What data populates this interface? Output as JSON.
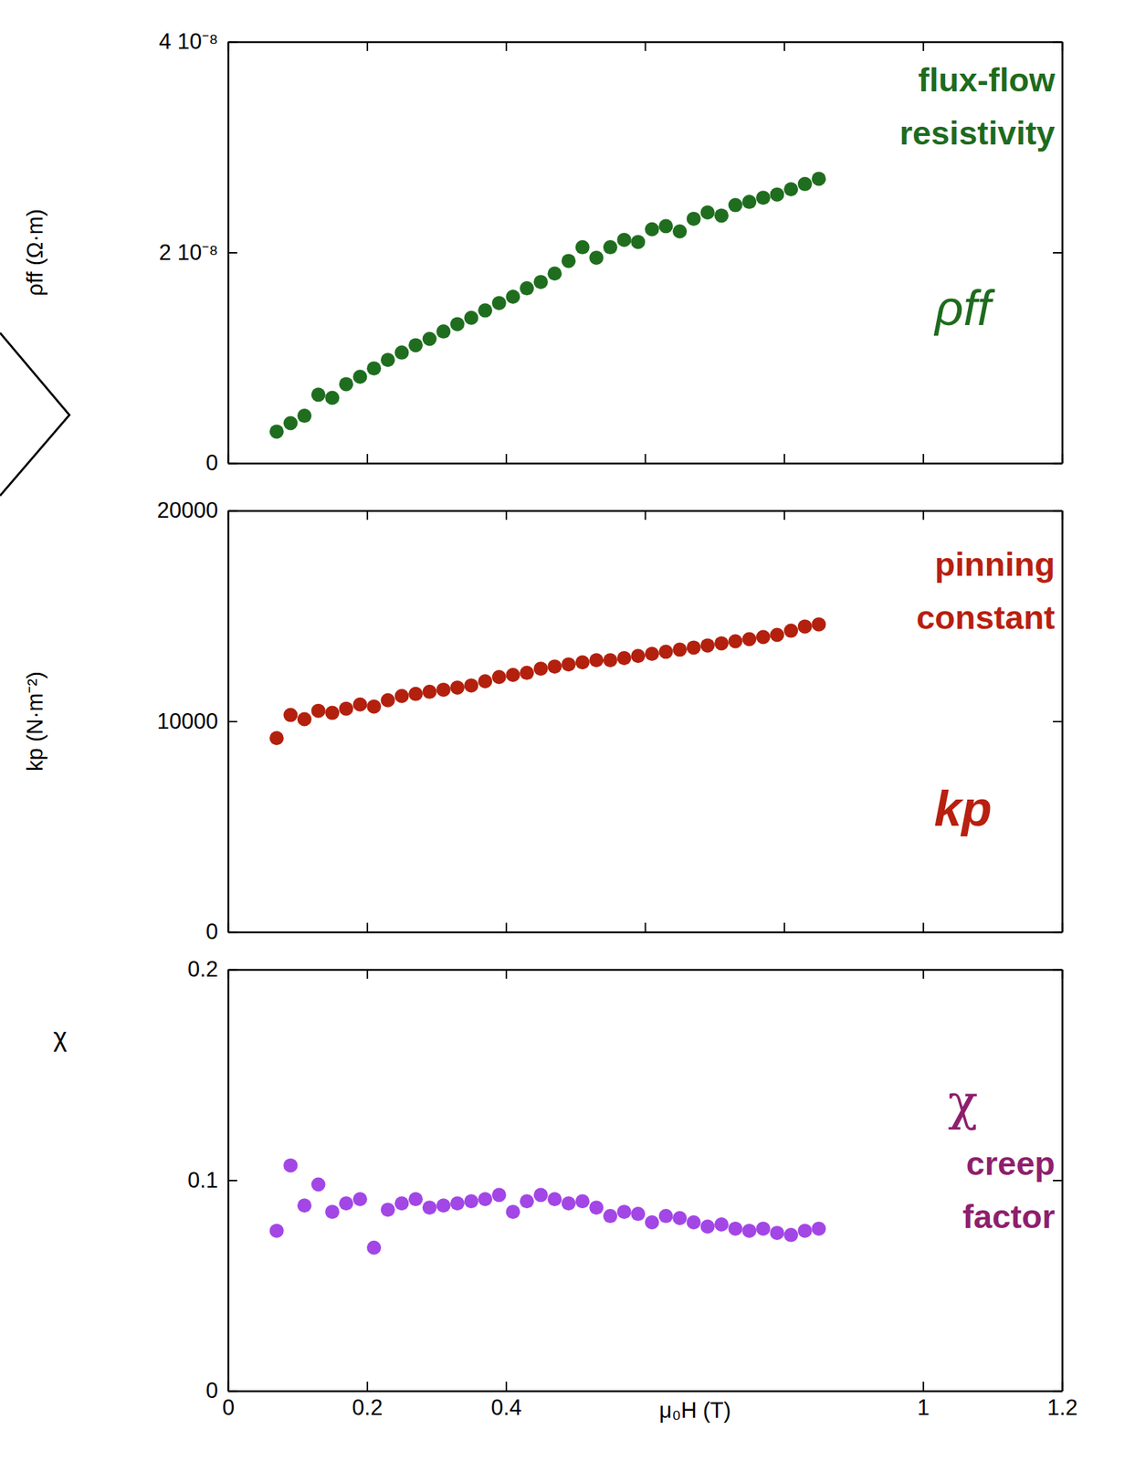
{
  "chart_data": [
    {
      "type": "scatter",
      "y_label": "ρff (Ω·m)",
      "annotations": [
        "flux-flow resistivity",
        "ρff"
      ],
      "color": "#1f6e1f",
      "marker": "circle",
      "grid": false,
      "tick_labels": "y",
      "xlim": [
        0,
        1.2
      ],
      "xticks": [
        0,
        0.2,
        0.4,
        0.6,
        0.8,
        1,
        1.2
      ],
      "ylim": [
        0,
        4e-08
      ],
      "yticks": [
        0,
        {
          "value": 2e-08,
          "label": "2 10⁻⁸"
        },
        {
          "value": 4e-08,
          "label": "4 10⁻⁸"
        }
      ],
      "x": [
        0.07,
        0.09,
        0.11,
        0.13,
        0.15,
        0.17,
        0.19,
        0.21,
        0.23,
        0.25,
        0.27,
        0.29,
        0.31,
        0.33,
        0.35,
        0.37,
        0.39,
        0.41,
        0.43,
        0.45,
        0.47,
        0.49,
        0.51,
        0.53,
        0.55,
        0.57,
        0.59,
        0.61,
        0.63,
        0.65,
        0.67,
        0.69,
        0.71,
        0.73,
        0.75,
        0.77,
        0.79,
        0.81,
        0.83,
        0.85
      ],
      "values": [
        3e-09,
        3.8e-09,
        4.5e-09,
        6.5e-09,
        6.2e-09,
        7.5e-09,
        8.2e-09,
        9e-09,
        9.8e-09,
        1.05e-08,
        1.12e-08,
        1.18e-08,
        1.25e-08,
        1.32e-08,
        1.38e-08,
        1.45e-08,
        1.52e-08,
        1.58e-08,
        1.66e-08,
        1.72e-08,
        1.8e-08,
        1.92e-08,
        2.05e-08,
        1.95e-08,
        2.05e-08,
        2.12e-08,
        2.1e-08,
        2.22e-08,
        2.25e-08,
        2.2e-08,
        2.32e-08,
        2.38e-08,
        2.35e-08,
        2.45e-08,
        2.48e-08,
        2.52e-08,
        2.55e-08,
        2.6e-08,
        2.65e-08,
        2.7e-08
      ]
    },
    {
      "type": "scatter",
      "y_label": "kp (N·m⁻²)",
      "annotations": [
        "pinning constant",
        "kp"
      ],
      "color": "#b3200e",
      "marker": "circle",
      "grid": false,
      "tick_labels": "y",
      "xlim": [
        0,
        1.2
      ],
      "xticks": [
        0,
        0.2,
        0.4,
        0.6,
        0.8,
        1,
        1.2
      ],
      "ylim": [
        0,
        20000
      ],
      "yticks": [
        0,
        10000,
        20000
      ],
      "x": [
        0.07,
        0.09,
        0.11,
        0.13,
        0.15,
        0.17,
        0.19,
        0.21,
        0.23,
        0.25,
        0.27,
        0.29,
        0.31,
        0.33,
        0.35,
        0.37,
        0.39,
        0.41,
        0.43,
        0.45,
        0.47,
        0.49,
        0.51,
        0.53,
        0.55,
        0.57,
        0.59,
        0.61,
        0.63,
        0.65,
        0.67,
        0.69,
        0.71,
        0.73,
        0.75,
        0.77,
        0.79,
        0.81,
        0.83,
        0.85
      ],
      "values": [
        9200,
        10300,
        10100,
        10500,
        10400,
        10600,
        10800,
        10700,
        11000,
        11200,
        11300,
        11400,
        11500,
        11600,
        11700,
        11900,
        12100,
        12200,
        12300,
        12500,
        12600,
        12700,
        12800,
        12900,
        12900,
        13000,
        13100,
        13200,
        13300,
        13400,
        13500,
        13600,
        13700,
        13800,
        13900,
        14000,
        14100,
        14300,
        14500,
        14600
      ]
    },
    {
      "type": "scatter",
      "y_label": "χ",
      "x_label": "μ₀H (T)",
      "annotations": [
        "creep factor",
        "χ"
      ],
      "color": "#a346e6",
      "marker": "circle",
      "grid": false,
      "xlim": [
        0,
        1.2
      ],
      "xticks": [
        0,
        0.2,
        0.4,
        1,
        1.2
      ],
      "ylim": [
        0,
        0.2
      ],
      "yticks": [
        0,
        0.1,
        0.2
      ],
      "x": [
        0.07,
        0.09,
        0.11,
        0.13,
        0.15,
        0.17,
        0.19,
        0.21,
        0.23,
        0.25,
        0.27,
        0.29,
        0.31,
        0.33,
        0.35,
        0.37,
        0.39,
        0.41,
        0.43,
        0.45,
        0.47,
        0.49,
        0.51,
        0.53,
        0.55,
        0.57,
        0.59,
        0.61,
        0.63,
        0.65,
        0.67,
        0.69,
        0.71,
        0.73,
        0.75,
        0.77,
        0.79,
        0.81,
        0.83,
        0.85
      ],
      "values": [
        0.076,
        0.107,
        0.088,
        0.098,
        0.085,
        0.089,
        0.091,
        0.068,
        0.086,
        0.089,
        0.091,
        0.087,
        0.088,
        0.089,
        0.09,
        0.091,
        0.093,
        0.085,
        0.09,
        0.093,
        0.091,
        0.089,
        0.09,
        0.087,
        0.083,
        0.085,
        0.084,
        0.08,
        0.083,
        0.082,
        0.08,
        0.078,
        0.079,
        0.077,
        0.076,
        0.077,
        0.075,
        0.074,
        0.076,
        0.077
      ]
    }
  ]
}
